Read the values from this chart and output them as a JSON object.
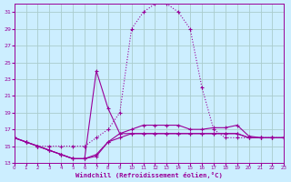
{
  "xlabel": "Windchill (Refroidissement éolien,°C)",
  "background_color": "#cceeff",
  "grid_color": "#aacccc",
  "line_color": "#990099",
  "xlim": [
    0,
    23
  ],
  "ylim": [
    13,
    32
  ],
  "yticks": [
    13,
    15,
    17,
    19,
    21,
    23,
    25,
    27,
    29,
    31
  ],
  "xticks": [
    0,
    1,
    2,
    3,
    4,
    5,
    6,
    7,
    8,
    9,
    10,
    11,
    12,
    13,
    14,
    15,
    16,
    17,
    18,
    19,
    20,
    21,
    22,
    23
  ],
  "series": [
    {
      "x": [
        0,
        1,
        2,
        3,
        4,
        5,
        6,
        7,
        8,
        9,
        10,
        11,
        12,
        13,
        14,
        15,
        16,
        17,
        18,
        19,
        20,
        21,
        22,
        23
      ],
      "y": [
        16,
        15.5,
        15,
        15,
        15,
        15,
        15,
        16,
        17,
        19,
        29,
        31,
        32,
        32,
        31,
        29,
        22,
        17,
        16,
        16,
        16,
        16,
        16,
        16
      ]
    },
    {
      "x": [
        0,
        1,
        2,
        3,
        4,
        5,
        6,
        7,
        8,
        9,
        10,
        11,
        12,
        13,
        14,
        15,
        16,
        17,
        18,
        19,
        20,
        21,
        22,
        23
      ],
      "y": [
        16,
        15.5,
        15,
        14.5,
        14,
        13.5,
        13.5,
        14,
        15.5,
        16,
        16.5,
        16.5,
        16.5,
        16.5,
        16.5,
        16.5,
        16.5,
        16.5,
        16.5,
        16.5,
        16,
        16,
        16,
        16
      ]
    },
    {
      "x": [
        0,
        1,
        2,
        3,
        4,
        5,
        6,
        7,
        8,
        9,
        10,
        11,
        12,
        13,
        14,
        15,
        16,
        17,
        18,
        19,
        20,
        21,
        22,
        23
      ],
      "y": [
        16,
        15.5,
        15,
        14.5,
        14,
        13.5,
        13.5,
        24,
        19.5,
        16.5,
        16.5,
        16.5,
        16.5,
        16.5,
        16.5,
        16.5,
        16.5,
        16.5,
        16.5,
        16.5,
        16,
        16,
        16,
        16
      ]
    },
    {
      "x": [
        0,
        1,
        2,
        3,
        4,
        5,
        6,
        7,
        8,
        9,
        10,
        11,
        12,
        13,
        14,
        15,
        16,
        17,
        18,
        19,
        20,
        21,
        22,
        23
      ],
      "y": [
        16,
        15.5,
        15,
        14.5,
        14,
        13.5,
        13.5,
        13.8,
        15.5,
        16.5,
        17,
        17.5,
        17.5,
        17.5,
        17.5,
        17,
        17,
        17.2,
        17.2,
        17.5,
        16.2,
        16,
        16,
        16
      ]
    }
  ]
}
